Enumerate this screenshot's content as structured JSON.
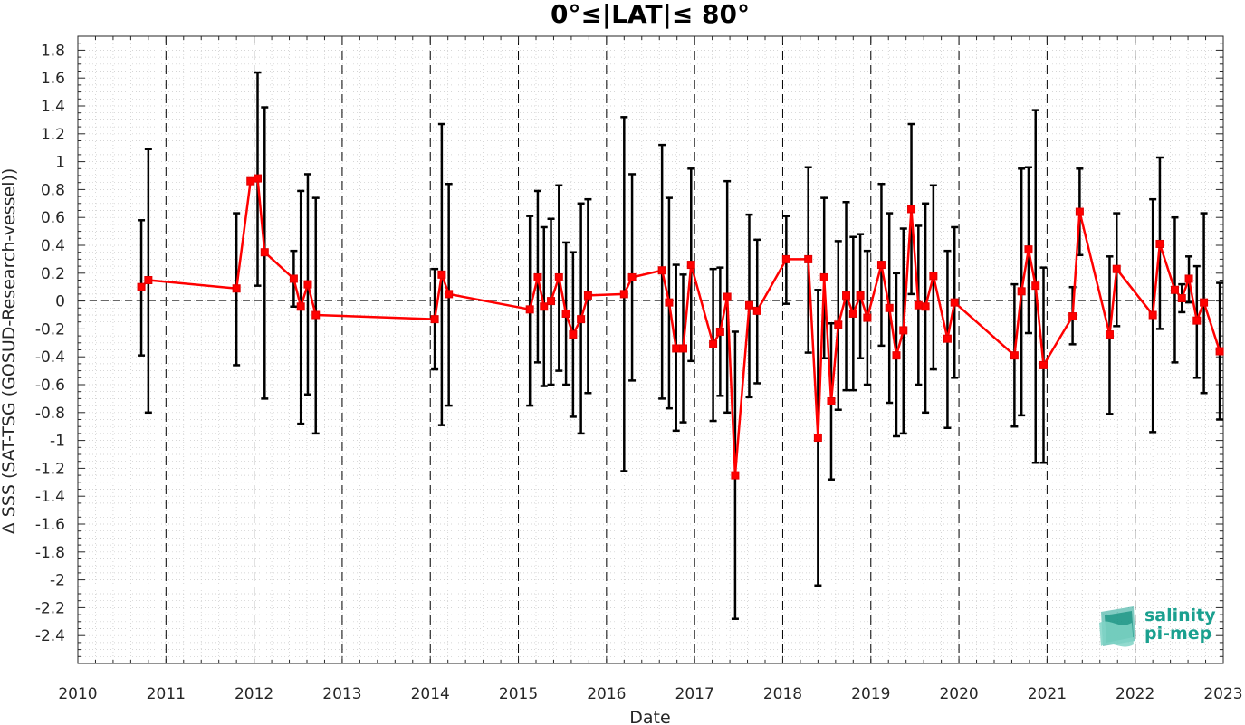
{
  "chart_data": {
    "type": "line",
    "title": "0°≤|LAT|≤ 80°",
    "xlabel": "Date",
    "ylabel": "Δ SSS (SAT-TSG (GOSUD-Research-vessel))",
    "xlim": [
      2010,
      2023
    ],
    "ylim": [
      -2.6,
      1.9
    ],
    "x_ticks": [
      "2010",
      "2011",
      "2012",
      "2013",
      "2014",
      "2015",
      "2016",
      "2017",
      "2018",
      "2019",
      "2020",
      "2021",
      "2022",
      "2023"
    ],
    "y_ticks": [
      "-2.4",
      "-2.2",
      "-2",
      "-1.8",
      "-1.6",
      "-1.4",
      "-1.2",
      "-1",
      "-0.8",
      "-0.6",
      "-0.4",
      "-0.2",
      "0",
      "0.2",
      "0.4",
      "0.6",
      "0.8",
      "1",
      "1.2",
      "1.4",
      "1.6",
      "1.8"
    ],
    "grid": "dotted minor grid; dashed vertical line at each year; dashed horizontal line at 0",
    "series": [
      {
        "color": "#ff0000",
        "errorbar_color": "#000000",
        "marker": "square",
        "points": [
          {
            "x": 2010.72,
            "y": 0.1,
            "lo": -0.39,
            "hi": 0.58
          },
          {
            "x": 2010.8,
            "y": 0.15,
            "lo": -0.8,
            "hi": 1.09
          },
          {
            "x": 2011.8,
            "y": 0.09,
            "lo": -0.46,
            "hi": 0.63
          },
          {
            "x": 2011.96,
            "y": 0.86,
            "lo": 0.84,
            "hi": 0.87
          },
          {
            "x": 2012.04,
            "y": 0.88,
            "lo": 0.11,
            "hi": 1.64
          },
          {
            "x": 2012.12,
            "y": 0.35,
            "lo": -0.7,
            "hi": 1.39
          },
          {
            "x": 2012.45,
            "y": 0.16,
            "lo": -0.04,
            "hi": 0.36
          },
          {
            "x": 2012.53,
            "y": -0.04,
            "lo": -0.88,
            "hi": 0.79
          },
          {
            "x": 2012.61,
            "y": 0.12,
            "lo": -0.67,
            "hi": 0.91
          },
          {
            "x": 2012.7,
            "y": -0.1,
            "lo": -0.95,
            "hi": 0.74
          },
          {
            "x": 2014.05,
            "y": -0.13,
            "lo": -0.49,
            "hi": 0.23
          },
          {
            "x": 2014.13,
            "y": 0.19,
            "lo": -0.89,
            "hi": 1.27
          },
          {
            "x": 2014.21,
            "y": 0.05,
            "lo": -0.75,
            "hi": 0.84
          },
          {
            "x": 2015.13,
            "y": -0.06,
            "lo": -0.75,
            "hi": 0.61
          },
          {
            "x": 2015.22,
            "y": 0.17,
            "lo": -0.44,
            "hi": 0.79
          },
          {
            "x": 2015.29,
            "y": -0.04,
            "lo": -0.61,
            "hi": 0.53
          },
          {
            "x": 2015.37,
            "y": 0.0,
            "lo": -0.6,
            "hi": 0.59
          },
          {
            "x": 2015.46,
            "y": 0.17,
            "lo": -0.5,
            "hi": 0.83
          },
          {
            "x": 2015.54,
            "y": -0.09,
            "lo": -0.6,
            "hi": 0.42
          },
          {
            "x": 2015.62,
            "y": -0.24,
            "lo": -0.83,
            "hi": 0.35
          },
          {
            "x": 2015.71,
            "y": -0.13,
            "lo": -0.95,
            "hi": 0.7
          },
          {
            "x": 2015.79,
            "y": 0.04,
            "lo": -0.66,
            "hi": 0.73
          },
          {
            "x": 2016.2,
            "y": 0.05,
            "lo": -1.22,
            "hi": 1.32
          },
          {
            "x": 2016.29,
            "y": 0.17,
            "lo": -0.57,
            "hi": 0.91
          },
          {
            "x": 2016.63,
            "y": 0.22,
            "lo": -0.7,
            "hi": 1.12
          },
          {
            "x": 2016.71,
            "y": -0.01,
            "lo": -0.77,
            "hi": 0.74
          },
          {
            "x": 2016.79,
            "y": -0.34,
            "lo": -0.93,
            "hi": 0.26
          },
          {
            "x": 2016.87,
            "y": -0.34,
            "lo": -0.87,
            "hi": 0.19
          },
          {
            "x": 2016.96,
            "y": 0.26,
            "lo": -0.43,
            "hi": 0.95
          },
          {
            "x": 2017.21,
            "y": -0.31,
            "lo": -0.86,
            "hi": 0.23
          },
          {
            "x": 2017.29,
            "y": -0.22,
            "lo": -0.68,
            "hi": 0.24
          },
          {
            "x": 2017.37,
            "y": 0.03,
            "lo": -0.8,
            "hi": 0.86
          },
          {
            "x": 2017.46,
            "y": -1.25,
            "lo": -2.28,
            "hi": -0.22
          },
          {
            "x": 2017.62,
            "y": -0.03,
            "lo": -0.69,
            "hi": 0.62
          },
          {
            "x": 2017.71,
            "y": -0.07,
            "lo": -0.59,
            "hi": 0.44
          },
          {
            "x": 2018.04,
            "y": 0.3,
            "lo": -0.02,
            "hi": 0.61
          },
          {
            "x": 2018.29,
            "y": 0.3,
            "lo": -0.37,
            "hi": 0.96
          },
          {
            "x": 2018.4,
            "y": -0.98,
            "lo": -2.04,
            "hi": 0.08
          },
          {
            "x": 2018.47,
            "y": 0.17,
            "lo": -0.41,
            "hi": 0.74
          },
          {
            "x": 2018.55,
            "y": -0.72,
            "lo": -1.28,
            "hi": -0.16
          },
          {
            "x": 2018.63,
            "y": -0.17,
            "lo": -0.78,
            "hi": 0.43
          },
          {
            "x": 2018.72,
            "y": 0.04,
            "lo": -0.64,
            "hi": 0.71
          },
          {
            "x": 2018.8,
            "y": -0.09,
            "lo": -0.64,
            "hi": 0.46
          },
          {
            "x": 2018.88,
            "y": 0.04,
            "lo": -0.41,
            "hi": 0.48
          },
          {
            "x": 2018.96,
            "y": -0.12,
            "lo": -0.6,
            "hi": 0.36
          },
          {
            "x": 2019.12,
            "y": 0.26,
            "lo": -0.32,
            "hi": 0.84
          },
          {
            "x": 2019.21,
            "y": -0.05,
            "lo": -0.73,
            "hi": 0.63
          },
          {
            "x": 2019.29,
            "y": -0.39,
            "lo": -0.97,
            "hi": 0.2
          },
          {
            "x": 2019.37,
            "y": -0.21,
            "lo": -0.95,
            "hi": 0.52
          },
          {
            "x": 2019.46,
            "y": 0.66,
            "lo": 0.05,
            "hi": 1.27
          },
          {
            "x": 2019.54,
            "y": -0.03,
            "lo": -0.6,
            "hi": 0.54
          },
          {
            "x": 2019.62,
            "y": -0.04,
            "lo": -0.8,
            "hi": 0.7
          },
          {
            "x": 2019.71,
            "y": 0.18,
            "lo": -0.49,
            "hi": 0.83
          },
          {
            "x": 2019.87,
            "y": -0.27,
            "lo": -0.91,
            "hi": 0.36
          },
          {
            "x": 2019.95,
            "y": -0.01,
            "lo": -0.55,
            "hi": 0.53
          },
          {
            "x": 2020.63,
            "y": -0.39,
            "lo": -0.9,
            "hi": 0.12
          },
          {
            "x": 2020.71,
            "y": 0.07,
            "lo": -0.82,
            "hi": 0.95
          },
          {
            "x": 2020.79,
            "y": 0.37,
            "lo": -0.23,
            "hi": 0.96
          },
          {
            "x": 2020.87,
            "y": 0.11,
            "lo": -1.16,
            "hi": 1.37
          },
          {
            "x": 2020.96,
            "y": -0.46,
            "lo": -1.16,
            "hi": 0.24
          },
          {
            "x": 2021.29,
            "y": -0.11,
            "lo": -0.31,
            "hi": 0.1
          },
          {
            "x": 2021.37,
            "y": 0.64,
            "lo": 0.33,
            "hi": 0.95
          },
          {
            "x": 2021.71,
            "y": -0.24,
            "lo": -0.81,
            "hi": 0.32
          },
          {
            "x": 2021.79,
            "y": 0.23,
            "lo": -0.18,
            "hi": 0.63
          },
          {
            "x": 2022.2,
            "y": -0.1,
            "lo": -0.94,
            "hi": 0.73
          },
          {
            "x": 2022.28,
            "y": 0.41,
            "lo": -0.2,
            "hi": 1.03
          },
          {
            "x": 2022.45,
            "y": 0.08,
            "lo": -0.44,
            "hi": 0.6
          },
          {
            "x": 2022.53,
            "y": 0.02,
            "lo": -0.08,
            "hi": 0.12
          },
          {
            "x": 2022.61,
            "y": 0.16,
            "lo": -0.01,
            "hi": 0.32
          },
          {
            "x": 2022.7,
            "y": -0.14,
            "lo": -0.55,
            "hi": 0.25
          },
          {
            "x": 2022.78,
            "y": -0.01,
            "lo": -0.66,
            "hi": 0.63
          },
          {
            "x": 2022.96,
            "y": -0.36,
            "lo": -0.85,
            "hi": 0.13
          }
        ]
      }
    ]
  },
  "logo": {
    "line1": "salinity",
    "line2": "pi-mep",
    "color": "#1aa08f"
  }
}
